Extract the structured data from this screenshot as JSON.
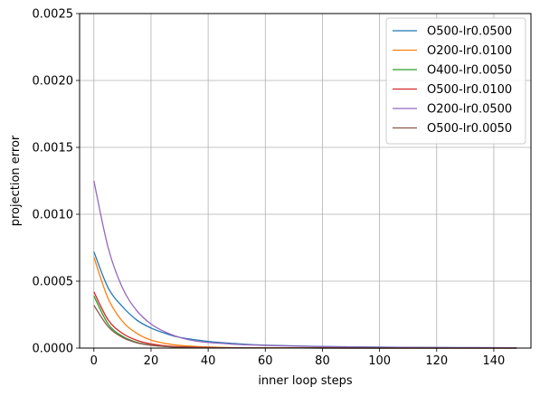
{
  "chart_data": {
    "type": "line",
    "title": "",
    "xlabel": "inner loop steps",
    "ylabel": "projection error",
    "xlim": [
      -5,
      153
    ],
    "ylim": [
      0,
      0.0025
    ],
    "xticks": [
      0,
      20,
      40,
      60,
      80,
      100,
      120,
      140
    ],
    "yticks": [
      0,
      0.0005,
      0.001,
      0.0015,
      0.002,
      0.0025
    ],
    "xtick_labels": [
      "0",
      "20",
      "40",
      "60",
      "80",
      "100",
      "120",
      "140"
    ],
    "ytick_labels": [
      "0.0000",
      "0.0005",
      "0.0010",
      "0.0015",
      "0.0020",
      "0.0025"
    ],
    "grid": true,
    "legend_position": "top-right",
    "series": [
      {
        "name": "O500-lr0.0500",
        "color": "#1f77b4",
        "x": [
          0,
          5,
          10,
          15,
          20,
          25,
          30,
          40,
          50,
          60,
          80,
          100,
          120,
          148
        ],
        "y": [
          0.00072,
          0.00045,
          0.00031,
          0.00021,
          0.00015,
          0.00011,
          8e-05,
          5e-05,
          3.3e-05,
          2.2e-05,
          1.2e-05,
          7e-06,
          4e-06,
          2e-06
        ]
      },
      {
        "name": "O200-lr0.0100",
        "color": "#ff7f0e",
        "x": [
          0,
          5,
          10,
          15,
          20,
          25,
          30,
          40,
          50,
          60,
          80,
          100,
          120,
          148
        ],
        "y": [
          0.00068,
          0.00037,
          0.0002,
          0.00011,
          6e-05,
          3.5e-05,
          2e-05,
          8e-06,
          3e-06,
          2e-06,
          1e-06,
          5e-07,
          3e-07,
          2e-07
        ]
      },
      {
        "name": "O400-lr0.0050",
        "color": "#2ca02c",
        "x": [
          0,
          5,
          10,
          15,
          20,
          25,
          30,
          40,
          50,
          60,
          80,
          100,
          120,
          148
        ],
        "y": [
          0.00039,
          0.00018,
          8.8e-05,
          4.3e-05,
          2.2e-05,
          1.2e-05,
          7e-06,
          3e-06,
          1.5e-06,
          1e-06,
          5e-07,
          3e-07,
          2e-07,
          1e-07
        ]
      },
      {
        "name": "O500-lr0.0100",
        "color": "#d62728",
        "x": [
          0,
          5,
          10,
          15,
          20,
          25,
          30,
          40,
          50,
          60,
          80,
          100,
          120,
          148
        ],
        "y": [
          0.00042,
          0.00021,
          0.00011,
          5.8e-05,
          3.1e-05,
          1.7e-05,
          1e-05,
          4e-06,
          2e-06,
          1e-06,
          6e-07,
          3e-07,
          2e-07,
          1e-07
        ]
      },
      {
        "name": "O200-lr0.0500",
        "color": "#9467bd",
        "x": [
          0,
          5,
          10,
          15,
          20,
          25,
          30,
          35,
          40,
          50,
          60,
          80,
          100,
          120,
          148
        ],
        "y": [
          0.00125,
          0.00075,
          0.00045,
          0.00028,
          0.00018,
          0.00012,
          8e-05,
          5.5e-05,
          4.2e-05,
          2.8e-05,
          2e-05,
          1.1e-05,
          6e-06,
          4e-06,
          2e-06
        ]
      },
      {
        "name": "O500-lr0.0050",
        "color": "#8c564b",
        "x": [
          0,
          5,
          10,
          15,
          20,
          25,
          30,
          40,
          50,
          60,
          80,
          100,
          120,
          148
        ],
        "y": [
          0.00032,
          0.00016,
          8e-05,
          4e-05,
          2.1e-05,
          1.2e-05,
          7e-06,
          3e-06,
          1.5e-06,
          1e-06,
          5e-07,
          3e-07,
          2e-07,
          1e-07
        ]
      }
    ]
  }
}
